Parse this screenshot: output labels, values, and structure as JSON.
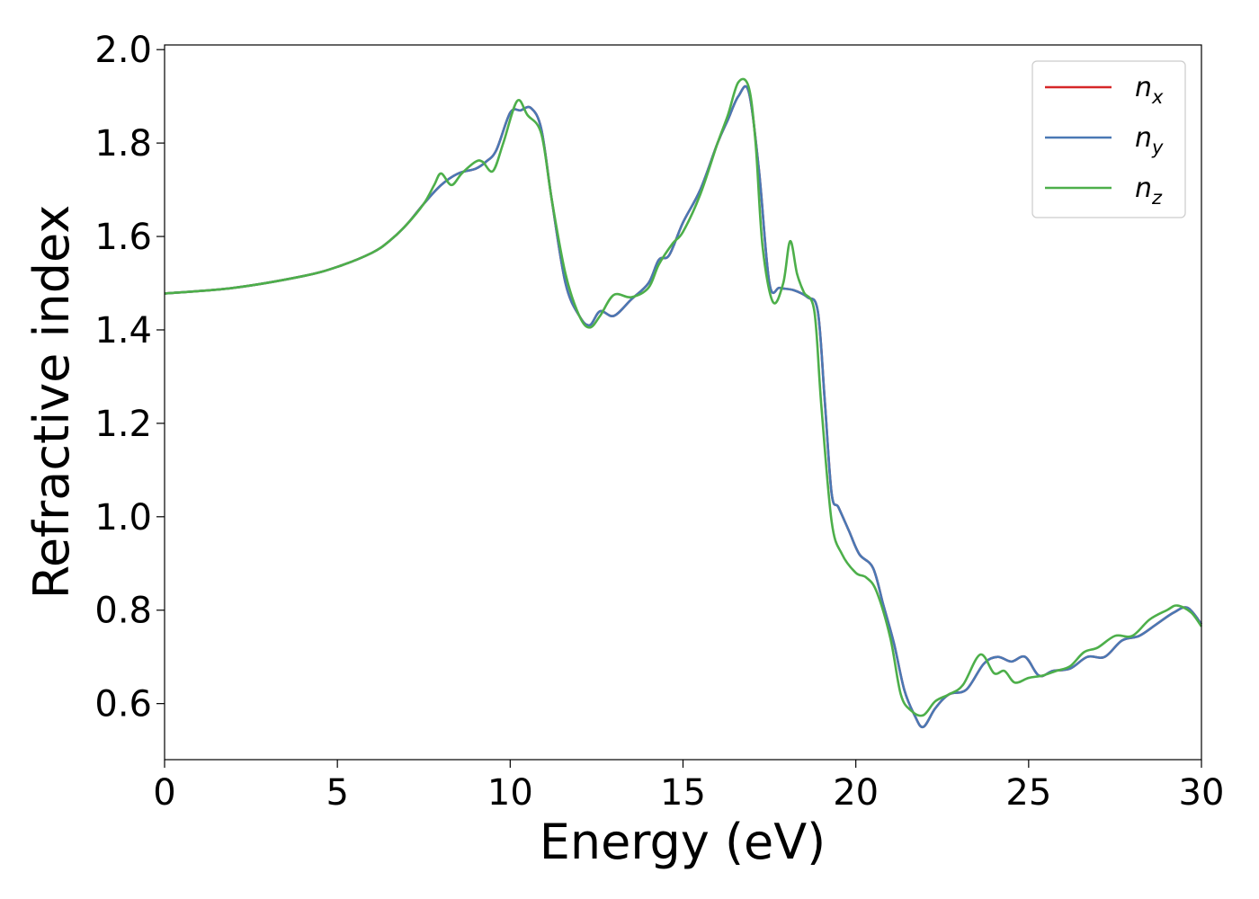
{
  "chart_data": {
    "type": "line",
    "xlabel": "Energy (eV)",
    "ylabel": "Refractive index",
    "xlim": [
      0,
      30
    ],
    "ylim": [
      0.48,
      2.01
    ],
    "xticks": [
      0,
      5,
      10,
      15,
      20,
      25,
      30
    ],
    "xtick_labels": [
      "0",
      "5",
      "10",
      "15",
      "20",
      "25",
      "30"
    ],
    "yticks": [
      0.6,
      0.8,
      1.0,
      1.2,
      1.4,
      1.6,
      1.8,
      2.0
    ],
    "ytick_labels": [
      "0.6",
      "0.8",
      "1.0",
      "1.2",
      "1.4",
      "1.6",
      "1.8",
      "2.0"
    ],
    "grid": false,
    "legend_position": "top-right",
    "series": [
      {
        "name": "n",
        "sub": "x",
        "color": "#d62728",
        "x": [
          0,
          2,
          4,
          5,
          6,
          6.5,
          7,
          7.5,
          8,
          8.5,
          9,
          9.3,
          9.6,
          10,
          10.3,
          10.6,
          10.9,
          11.2,
          11.6,
          12,
          12.3,
          12.6,
          13,
          13.5,
          14,
          14.3,
          14.6,
          15,
          15.5,
          16,
          16.3,
          16.6,
          16.9,
          17.2,
          17.5,
          17.8,
          18.2,
          18.6,
          18.9,
          19.1,
          19.3,
          19.5,
          19.8,
          20.1,
          20.5,
          20.8,
          21.1,
          21.4,
          21.7,
          21.95,
          22.3,
          22.7,
          23.2,
          23.7,
          24.1,
          24.5,
          24.9,
          25.3,
          25.7,
          26.2,
          26.7,
          27.2,
          27.7,
          28.2,
          28.7,
          29.2,
          29.6,
          30
        ],
        "y": [
          1.478,
          1.49,
          1.515,
          1.535,
          1.565,
          1.59,
          1.625,
          1.67,
          1.71,
          1.735,
          1.745,
          1.76,
          1.785,
          1.865,
          1.87,
          1.875,
          1.83,
          1.68,
          1.5,
          1.43,
          1.41,
          1.44,
          1.43,
          1.465,
          1.5,
          1.55,
          1.56,
          1.63,
          1.7,
          1.8,
          1.85,
          1.9,
          1.91,
          1.74,
          1.5,
          1.49,
          1.485,
          1.47,
          1.44,
          1.25,
          1.05,
          1.02,
          0.97,
          0.92,
          0.89,
          0.81,
          0.73,
          0.63,
          0.575,
          0.55,
          0.59,
          0.62,
          0.63,
          0.685,
          0.7,
          0.69,
          0.7,
          0.66,
          0.67,
          0.675,
          0.7,
          0.7,
          0.735,
          0.745,
          0.77,
          0.795,
          0.805,
          0.77
        ]
      },
      {
        "name": "n",
        "sub": "y",
        "color": "#4a78b4",
        "x": [
          0,
          2,
          4,
          5,
          6,
          6.5,
          7,
          7.5,
          8,
          8.5,
          9,
          9.3,
          9.6,
          10,
          10.3,
          10.6,
          10.9,
          11.2,
          11.6,
          12,
          12.3,
          12.6,
          13,
          13.5,
          14,
          14.3,
          14.6,
          15,
          15.5,
          16,
          16.3,
          16.6,
          16.9,
          17.2,
          17.5,
          17.8,
          18.2,
          18.6,
          18.9,
          19.1,
          19.3,
          19.5,
          19.8,
          20.1,
          20.5,
          20.8,
          21.1,
          21.4,
          21.7,
          21.95,
          22.3,
          22.7,
          23.2,
          23.7,
          24.1,
          24.5,
          24.9,
          25.3,
          25.7,
          26.2,
          26.7,
          27.2,
          27.7,
          28.2,
          28.7,
          29.2,
          29.6,
          30
        ],
        "y": [
          1.478,
          1.49,
          1.515,
          1.535,
          1.565,
          1.59,
          1.625,
          1.67,
          1.71,
          1.735,
          1.745,
          1.76,
          1.785,
          1.865,
          1.87,
          1.875,
          1.83,
          1.68,
          1.5,
          1.43,
          1.41,
          1.44,
          1.43,
          1.465,
          1.5,
          1.55,
          1.56,
          1.63,
          1.7,
          1.8,
          1.85,
          1.9,
          1.91,
          1.74,
          1.5,
          1.49,
          1.485,
          1.47,
          1.44,
          1.25,
          1.05,
          1.02,
          0.97,
          0.92,
          0.89,
          0.81,
          0.73,
          0.63,
          0.575,
          0.55,
          0.59,
          0.62,
          0.63,
          0.685,
          0.7,
          0.69,
          0.7,
          0.66,
          0.67,
          0.675,
          0.7,
          0.7,
          0.735,
          0.745,
          0.77,
          0.795,
          0.805,
          0.77
        ]
      },
      {
        "name": "n",
        "sub": "z",
        "color": "#4daf4a",
        "x": [
          0,
          2,
          4,
          5,
          6,
          6.5,
          7,
          7.5,
          7.8,
          8.0,
          8.3,
          8.6,
          9.0,
          9.2,
          9.5,
          9.8,
          10.2,
          10.5,
          10.9,
          11.2,
          11.6,
          12.0,
          12.3,
          12.6,
          13.0,
          13.5,
          14.0,
          14.3,
          14.7,
          15.0,
          15.5,
          16.0,
          16.3,
          16.6,
          16.9,
          17.1,
          17.3,
          17.6,
          17.9,
          18.1,
          18.3,
          18.5,
          18.8,
          19.0,
          19.3,
          19.6,
          20.0,
          20.3,
          20.6,
          21.0,
          21.3,
          21.6,
          21.95,
          22.3,
          22.7,
          23.1,
          23.6,
          24.0,
          24.3,
          24.6,
          25.0,
          25.4,
          25.8,
          26.2,
          26.6,
          27.0,
          27.5,
          28.0,
          28.5,
          29.0,
          29.3,
          29.7,
          30
        ],
        "y": [
          1.478,
          1.49,
          1.515,
          1.535,
          1.565,
          1.59,
          1.625,
          1.67,
          1.71,
          1.735,
          1.71,
          1.735,
          1.76,
          1.76,
          1.74,
          1.8,
          1.89,
          1.86,
          1.82,
          1.68,
          1.52,
          1.43,
          1.405,
          1.43,
          1.475,
          1.47,
          1.49,
          1.54,
          1.585,
          1.61,
          1.69,
          1.8,
          1.86,
          1.93,
          1.92,
          1.8,
          1.58,
          1.46,
          1.5,
          1.59,
          1.52,
          1.48,
          1.44,
          1.24,
          0.99,
          0.92,
          0.88,
          0.87,
          0.84,
          0.74,
          0.62,
          0.585,
          0.575,
          0.605,
          0.62,
          0.64,
          0.705,
          0.665,
          0.67,
          0.645,
          0.655,
          0.66,
          0.67,
          0.68,
          0.71,
          0.72,
          0.745,
          0.745,
          0.78,
          0.8,
          0.81,
          0.795,
          0.765
        ]
      }
    ]
  }
}
